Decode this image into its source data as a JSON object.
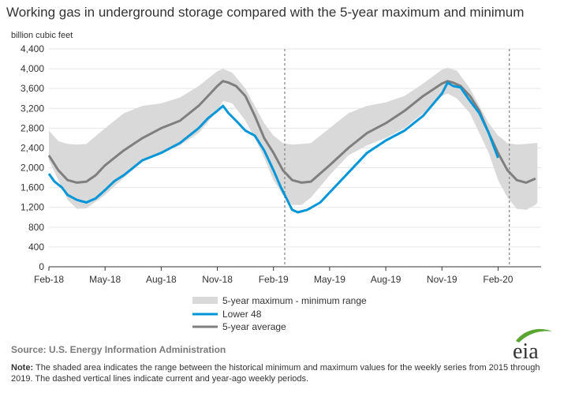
{
  "title": "Working gas in underground storage compared with the 5-year maximum and minimum",
  "unit_label": "billion cubic feet",
  "source": "Source: U.S. Energy Information Administration",
  "note_label": "Note:",
  "note_text": "The shaded area indicates the range between the historical minimum and maximum values for the weekly series from 2015 through 2019. The dashed vertical lines indicate current and year-ago weekly periods.",
  "logo_text": "eia",
  "colors": {
    "range": "#d9d9d9",
    "lower48": "#0096d7",
    "average": "#7f7f7f",
    "logo_green": "#5aa532"
  },
  "chart_data": {
    "type": "area",
    "x_unit": "month index from Feb-18 (0 = Feb-18)",
    "xlim": [
      0,
      26.3
    ],
    "ylim": [
      0,
      4400
    ],
    "ytick_step": 400,
    "x_tick_labels": [
      {
        "pos": 0,
        "label": "Feb-18"
      },
      {
        "pos": 3,
        "label": "May-18"
      },
      {
        "pos": 6,
        "label": "Aug-18"
      },
      {
        "pos": 9,
        "label": "Nov-18"
      },
      {
        "pos": 12,
        "label": "Feb-19"
      },
      {
        "pos": 15,
        "label": "May-19"
      },
      {
        "pos": 18,
        "label": "Aug-19"
      },
      {
        "pos": 21,
        "label": "Nov-19"
      },
      {
        "pos": 24,
        "label": "Feb-20"
      }
    ],
    "vlines": [
      12.6,
      24.6
    ],
    "legend": [
      "5-year maximum - minimum range",
      "Lower 48",
      "5-year average"
    ],
    "range": {
      "x": [
        0,
        0.5,
        1,
        1.5,
        2,
        3,
        4,
        5,
        6,
        7,
        8,
        9,
        9.3,
        9.8,
        10.5,
        11,
        11.5,
        12,
        12.5,
        13,
        13.5,
        14,
        15,
        16,
        17,
        18,
        19,
        20,
        21,
        21.3,
        21.8,
        22.5,
        23,
        23.5,
        24,
        24.5,
        25,
        25.5,
        26,
        26.1
      ],
      "max": [
        2750,
        2540,
        2480,
        2470,
        2480,
        2800,
        3100,
        3250,
        3300,
        3420,
        3650,
        3950,
        4000,
        3920,
        3600,
        3250,
        2900,
        2650,
        2500,
        2470,
        2480,
        2500,
        2800,
        3100,
        3250,
        3320,
        3450,
        3700,
        3980,
        4020,
        3960,
        3600,
        3250,
        2900,
        2650,
        2500,
        2470,
        2480,
        2500,
        2500
      ],
      "min": [
        2150,
        1750,
        1350,
        1170,
        1180,
        1450,
        1800,
        2120,
        2300,
        2450,
        2700,
        3150,
        3350,
        3300,
        2950,
        2600,
        2200,
        1750,
        1450,
        1250,
        1250,
        1400,
        1850,
        2250,
        2450,
        2600,
        2800,
        3100,
        3450,
        3500,
        3400,
        3100,
        2700,
        2300,
        1750,
        1400,
        1170,
        1150,
        1250,
        1300
      ]
    },
    "series": [
      {
        "name": "Lower 48",
        "x": [
          0,
          0.3,
          0.7,
          1,
          1.5,
          2,
          2.5,
          3,
          3.5,
          4,
          5,
          6,
          7,
          8,
          8.5,
          9,
          9.3,
          9.6,
          10,
          10.5,
          11,
          11.5,
          12,
          12.4,
          12.8,
          13,
          13.3,
          13.8,
          14.5,
          15,
          16,
          17,
          18,
          19,
          20,
          21,
          21.3,
          21.6,
          22,
          22.5,
          23,
          23.5,
          24
        ],
        "y": [
          1880,
          1720,
          1600,
          1450,
          1350,
          1300,
          1380,
          1550,
          1730,
          1850,
          2150,
          2300,
          2500,
          2800,
          3000,
          3150,
          3250,
          3100,
          2950,
          2750,
          2650,
          2350,
          1950,
          1600,
          1300,
          1150,
          1100,
          1150,
          1300,
          1500,
          1900,
          2300,
          2550,
          2750,
          3050,
          3500,
          3720,
          3650,
          3620,
          3350,
          3100,
          2700,
          2200
        ]
      },
      {
        "name": "5-year average",
        "x": [
          0,
          0.5,
          1,
          1.5,
          2,
          2.5,
          3,
          4,
          5,
          6,
          7,
          8,
          8.5,
          9,
          9.3,
          9.6,
          10,
          10.5,
          11,
          11.5,
          12,
          12.5,
          13,
          13.5,
          14,
          15,
          16,
          17,
          18,
          19,
          20,
          21,
          21.3,
          21.6,
          22,
          22.5,
          23,
          23.5,
          24,
          24.5,
          25,
          25.5,
          26
        ],
        "y": [
          2250,
          1950,
          1750,
          1700,
          1720,
          1850,
          2050,
          2350,
          2600,
          2800,
          2950,
          3250,
          3450,
          3650,
          3750,
          3720,
          3650,
          3450,
          3050,
          2600,
          2300,
          1950,
          1750,
          1700,
          1720,
          2050,
          2400,
          2700,
          2900,
          3150,
          3450,
          3700,
          3750,
          3720,
          3650,
          3450,
          3150,
          2700,
          2300,
          1950,
          1750,
          1700,
          1780
        ]
      }
    ]
  }
}
